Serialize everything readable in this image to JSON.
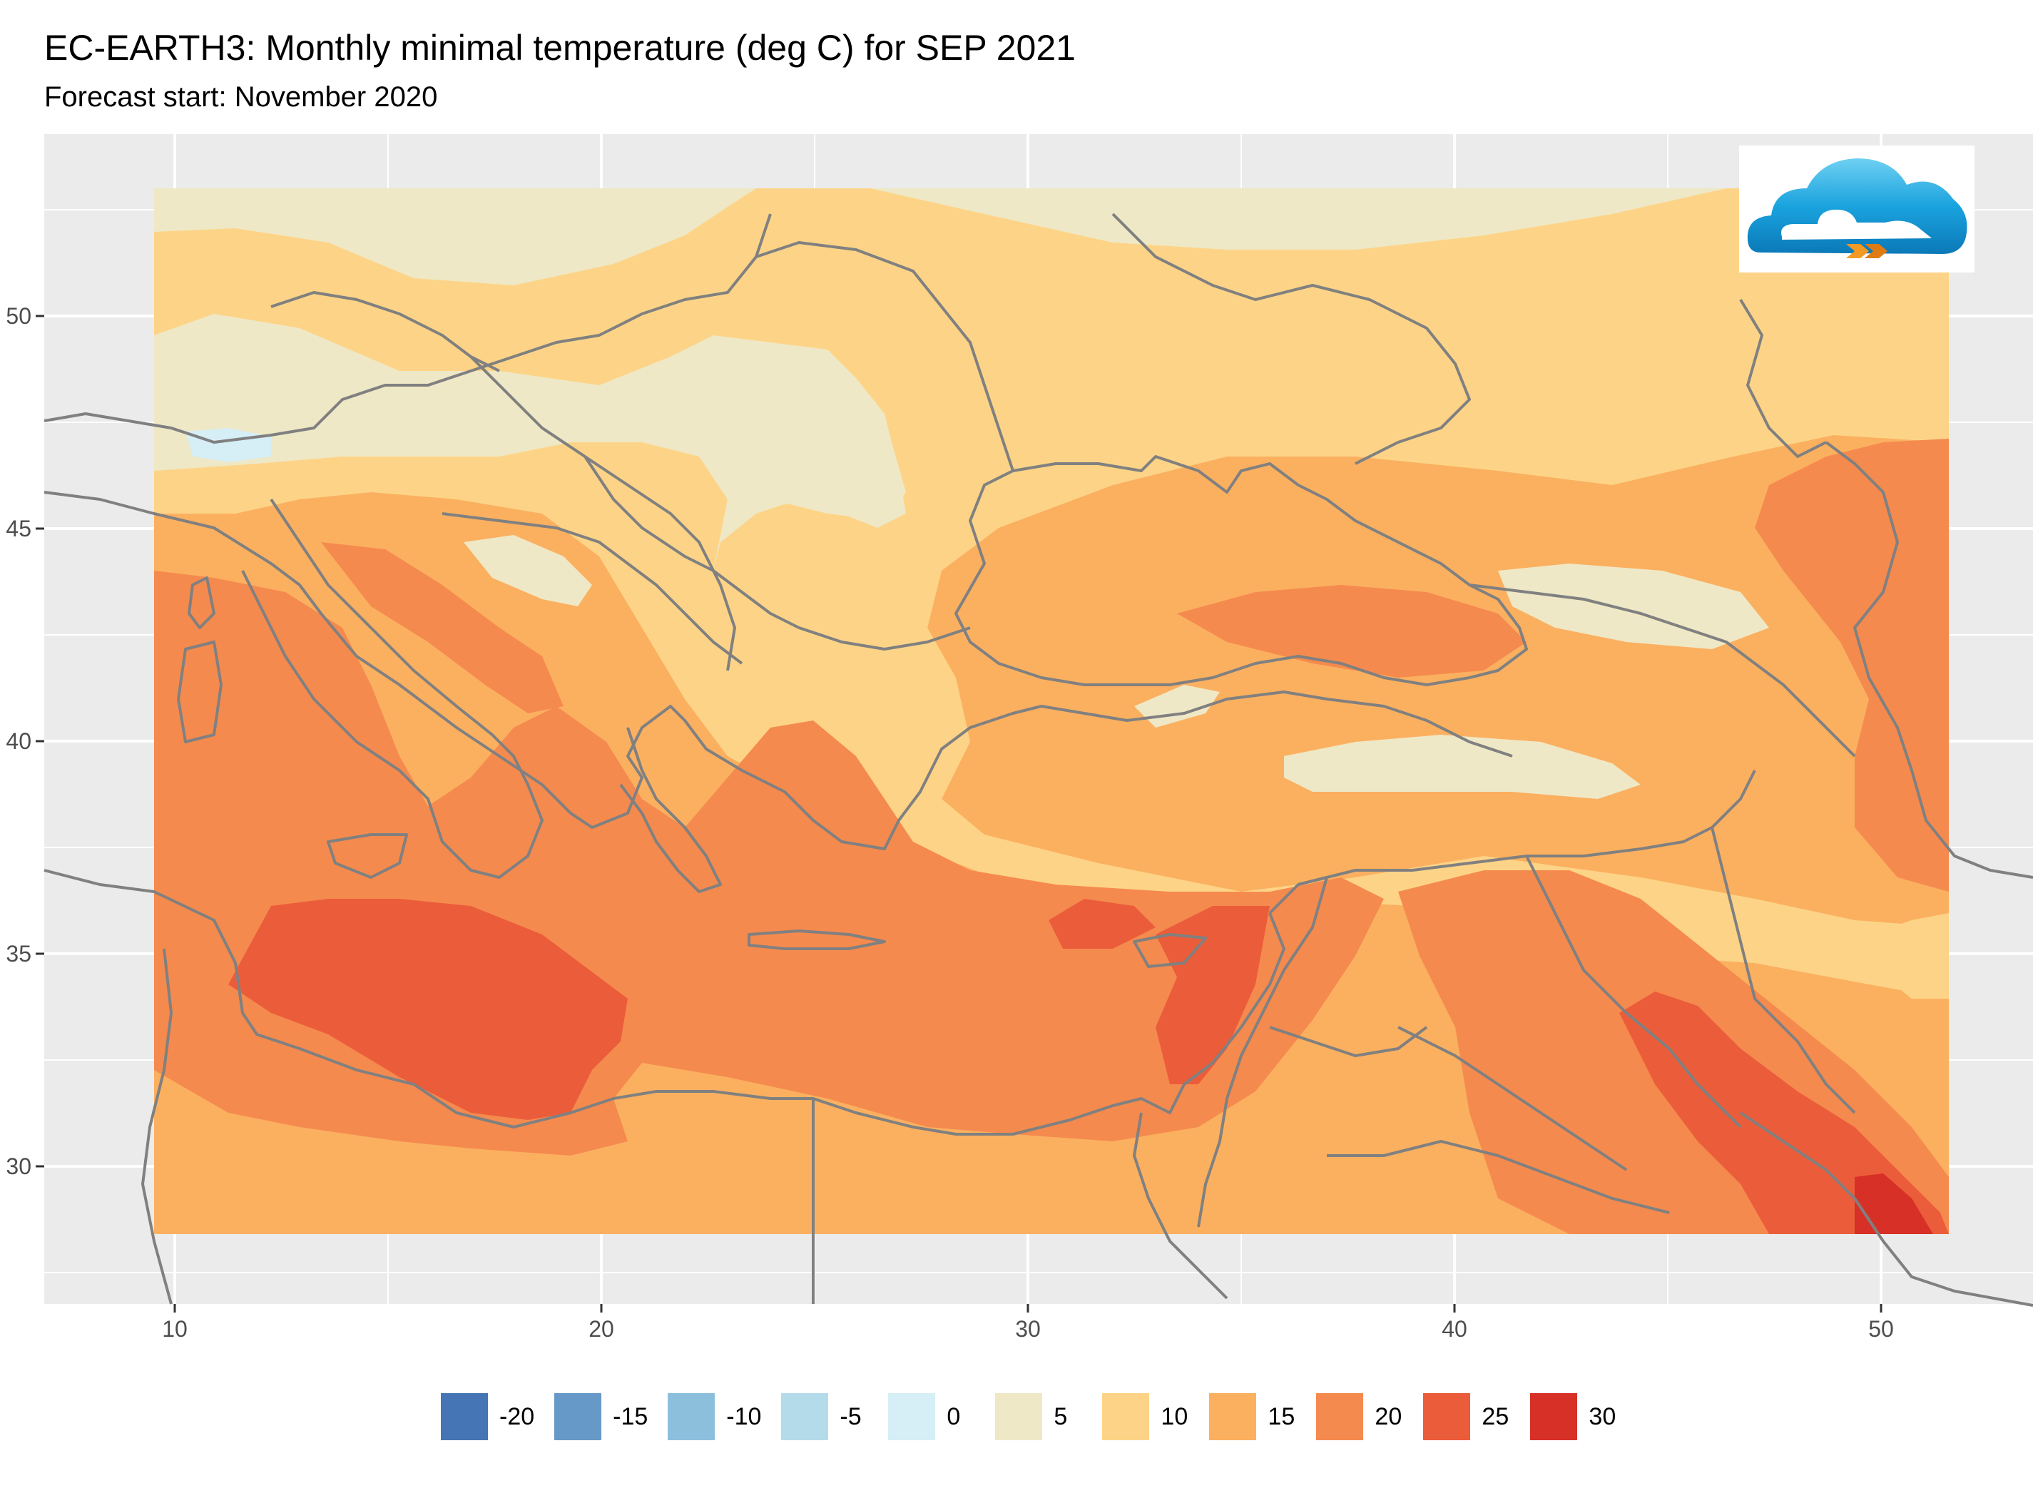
{
  "header": {
    "title": "EC-EARTH3: Monthly minimal temperature (deg C) for SEP 2021",
    "subtitle": "Forecast start: November 2020"
  },
  "colors": {
    "panel_bg": "#ebebeb",
    "grid": "#ffffff",
    "borders": "#808080",
    "axis_text": "#4d4d4d"
  },
  "axes": {
    "x_ticks": [
      "10",
      "20",
      "30",
      "40",
      "50"
    ],
    "y_ticks": [
      "50",
      "45",
      "40",
      "35",
      "30"
    ]
  },
  "chart_data": {
    "type": "heatmap",
    "title": "EC-EARTH3: Monthly minimal temperature (deg C) for SEP 2021",
    "subtitle": "Forecast start: November 2020",
    "xlim": [
      7,
      54
    ],
    "ylim": [
      27,
      54
    ],
    "x_ticks": [
      10,
      20,
      30,
      40,
      50
    ],
    "y_ticks": [
      30,
      35,
      40,
      45,
      50
    ],
    "data_extent": {
      "lon": [
        9.5,
        51.5
      ],
      "lat": [
        28.5,
        53
      ]
    },
    "grid": true,
    "legend_position": "bottom",
    "legend": [
      {
        "label": "-20",
        "color": "#4575b4"
      },
      {
        "label": "-15",
        "color": "#6699c7"
      },
      {
        "label": "-10",
        "color": "#8cbfdc"
      },
      {
        "label": "-5",
        "color": "#b3dbea"
      },
      {
        "label": "0",
        "color": "#d6eef5"
      },
      {
        "label": "5",
        "color": "#efe8c6"
      },
      {
        "label": "10",
        "color": "#fdd487"
      },
      {
        "label": "15",
        "color": "#fbb060"
      },
      {
        "label": "20",
        "color": "#f58a4e"
      },
      {
        "label": "25",
        "color": "#eb5d3a"
      },
      {
        "label": "30",
        "color": "#d73027"
      }
    ]
  },
  "logo": {
    "name": "cloud-logo-icon"
  }
}
